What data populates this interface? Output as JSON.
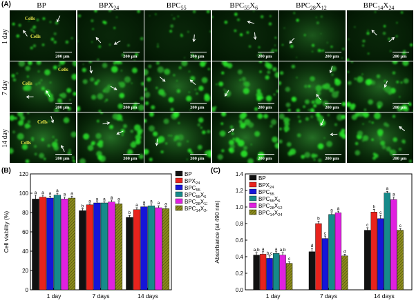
{
  "panel_a": {
    "label": "(A)",
    "columns": [
      "BP",
      "BPX24",
      "BPC55",
      "BPC55X6",
      "BPC28X12",
      "BPC14X24"
    ],
    "rows": [
      "1 day",
      "7 day",
      "14 day"
    ],
    "scale_bar": "200 μm",
    "cells_label": "Cells",
    "cells_annotations": [
      {
        "row": 0,
        "col": 0,
        "count": 2
      },
      {
        "row": 1,
        "col": 0,
        "count": 2
      },
      {
        "row": 2,
        "col": 0,
        "count": 2
      }
    ]
  },
  "panel_b_label": "(B)",
  "panel_c_label": "(C)",
  "colors": {
    "BP": "#111111",
    "BPX24": "#e8231d",
    "BPC55": "#1515d8",
    "BPC55X6": "#168a8a",
    "BPC28X12": "#e020e0",
    "BPC14X24": "#8c8c1c"
  },
  "chart_data": [
    {
      "type": "bar",
      "ylabel": "Cell viability (%)",
      "categories": [
        "1 day",
        "7 days",
        "14 days"
      ],
      "ylim": [
        0,
        120
      ],
      "yticks": [
        0,
        20,
        40,
        60,
        80,
        100,
        120
      ],
      "legend_position": "top-right",
      "series": [
        {
          "name": "BP",
          "values": [
            94,
            82,
            75
          ],
          "errors": [
            4,
            2,
            2
          ],
          "letters": [
            "a",
            "b",
            "b"
          ]
        },
        {
          "name": "BPX24",
          "values": [
            96,
            88,
            83
          ],
          "errors": [
            2,
            1,
            2
          ],
          "letters": [
            "a",
            "a",
            "a"
          ]
        },
        {
          "name": "BPC55",
          "values": [
            95,
            90,
            86
          ],
          "errors": [
            2,
            1,
            2
          ],
          "letters": [
            "a",
            "a",
            "a"
          ]
        },
        {
          "name": "BPC55X6",
          "values": [
            98,
            90,
            87
          ],
          "errors": [
            2,
            1,
            2
          ],
          "letters": [
            "a",
            "a",
            "a"
          ]
        },
        {
          "name": "BPC28X12",
          "values": [
            94,
            91,
            85
          ],
          "errors": [
            2,
            2,
            2
          ],
          "letters": [
            "a",
            "a",
            "a"
          ]
        },
        {
          "name": "BPC14X24",
          "values": [
            95,
            89,
            84
          ],
          "errors": [
            2,
            2,
            2
          ],
          "letters": [
            "a",
            "a",
            "a"
          ]
        }
      ]
    },
    {
      "type": "bar",
      "ylabel": "Absorbance (at 490 nm)",
      "categories": [
        "1 day",
        "7 days",
        "14 days"
      ],
      "ylim": [
        0.0,
        1.4
      ],
      "yticks": [
        "0.0",
        "0.2",
        "0.4",
        "0.6",
        "0.8",
        "1.0",
        "1.2",
        "1.4"
      ],
      "legend_position": "top-left",
      "series": [
        {
          "name": "BP",
          "values": [
            0.42,
            0.46,
            0.72
          ],
          "errors": [
            0.03,
            0.04,
            0.03
          ],
          "letters": [
            "a,b",
            "d",
            "c"
          ]
        },
        {
          "name": "BPX24",
          "values": [
            0.43,
            0.8,
            0.94
          ],
          "errors": [
            0.03,
            0.03,
            0.03
          ],
          "letters": [
            "a",
            "b",
            "b"
          ]
        },
        {
          "name": "BPC55",
          "values": [
            0.38,
            0.62,
            0.86
          ],
          "errors": [
            0.03,
            0.03,
            0.04
          ],
          "letters": [
            "b,c",
            "c",
            "c"
          ]
        },
        {
          "name": "BPC55X6",
          "values": [
            0.44,
            0.91,
            1.17
          ],
          "errors": [
            0.02,
            0.02,
            0.02
          ],
          "letters": [
            "a",
            "a",
            "a"
          ]
        },
        {
          "name": "BPC28X12",
          "values": [
            0.42,
            0.93,
            1.09
          ],
          "errors": [
            0.03,
            0.02,
            0.03
          ],
          "letters": [
            "a,b",
            "a",
            "a"
          ]
        },
        {
          "name": "BPC14X24",
          "values": [
            0.32,
            0.41,
            0.72
          ],
          "errors": [
            0.02,
            0.02,
            0.02
          ],
          "letters": [
            "c",
            "d",
            "c"
          ]
        }
      ]
    }
  ]
}
